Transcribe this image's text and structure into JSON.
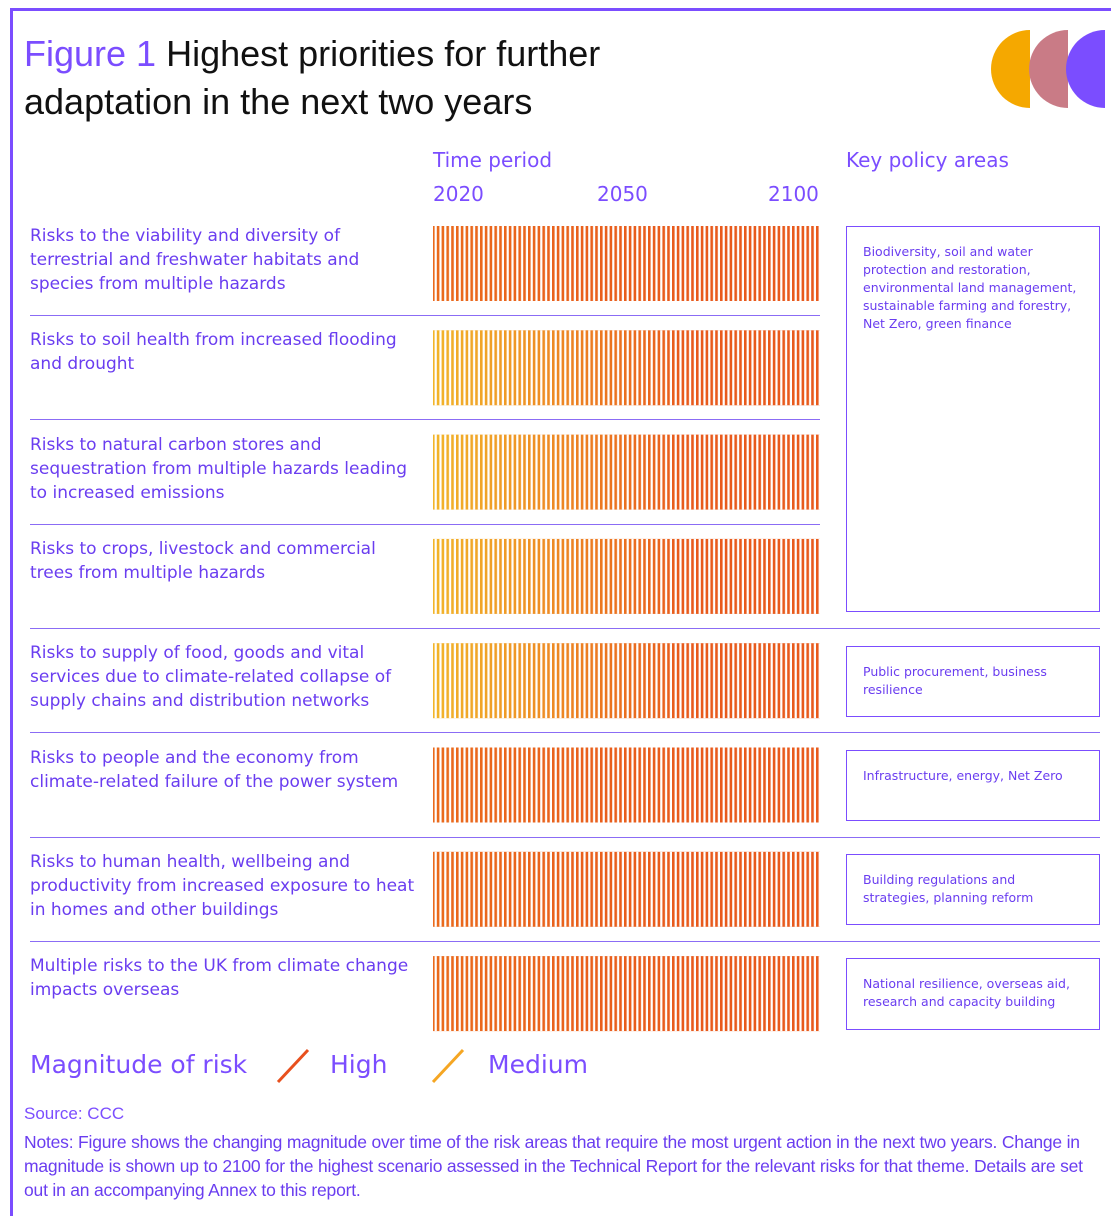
{
  "figure_label": "Figure 1",
  "title": "Highest priorities for further adaptation in the next two years",
  "time_period_label": "Time period",
  "years": [
    "2020",
    "2050",
    "2100"
  ],
  "policy_header": "Key policy areas",
  "rows": [
    {
      "label": "Risks to the viability and diversity of terrestrial and freshwater habitats and species from multiple hazards",
      "colors": [
        "#ea6a1c",
        "#e85a1c"
      ]
    },
    {
      "label": "Risks to soil health from increased flooding and drought",
      "colors": [
        "#f2b52a",
        "#e85a1c"
      ]
    },
    {
      "label": "Risks to natural carbon stores and sequestration from multiple hazards leading to increased emissions",
      "colors": [
        "#f2b52a",
        "#e85a1c"
      ]
    },
    {
      "label": "Risks to crops, livestock and commercial trees from multiple hazards",
      "colors": [
        "#f2b52a",
        "#e85a1c"
      ]
    },
    {
      "label": "Risks to supply of food, goods and vital services due to climate-related collapse of supply chains and distribution networks",
      "colors": [
        "#f2b52a",
        "#e85a1c"
      ]
    },
    {
      "label": "Risks to people and the economy from climate-related failure of the power system",
      "colors": [
        "#ea6a1c",
        "#e85a1c"
      ]
    },
    {
      "label": "Risks to human health, wellbeing and productivity from increased exposure to heat in homes and other buildings",
      "colors": [
        "#ea6a1c",
        "#e85a1c"
      ]
    },
    {
      "label": "Multiple risks to the UK from climate change impacts overseas",
      "colors": [
        "#ea6a1c",
        "#e85a1c"
      ]
    }
  ],
  "policy_areas": [
    "Biodiversity, soil and water protection and restoration, environmental land management, sustainable farming and forestry, Net Zero, green finance",
    "Public procurement, business resilience",
    "Infrastructure, energy, Net Zero",
    "Building regulations and strategies, planning reform",
    "National resilience, overseas aid, research and capacity building"
  ],
  "legend": {
    "title": "Magnitude of risk",
    "items": [
      {
        "label": "High",
        "color": "#e8501e"
      },
      {
        "label": "Medium",
        "color": "#f5a623"
      }
    ]
  },
  "source": "Source: CCC",
  "notes": "Notes: Figure shows the changing magnitude over time of the risk areas that require the most urgent action in the next two years. Change in magnitude is shown up to 2100 for the highest scenario assessed in the Technical Report for the relevant risks for that theme. Details are set out in an accompanying Annex to this report."
}
